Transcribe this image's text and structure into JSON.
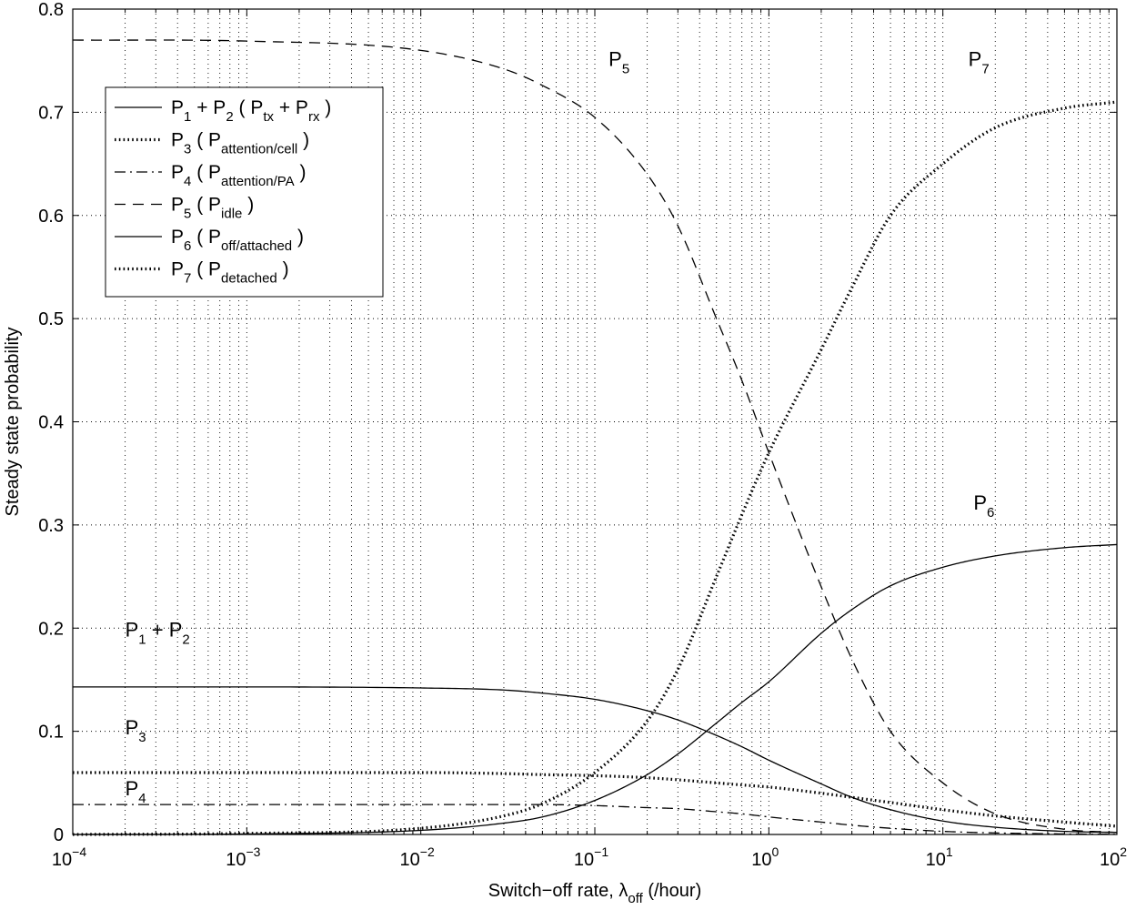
{
  "chart_data": {
    "type": "line",
    "xscale": "log",
    "xlim": [
      0.0001,
      100
    ],
    "ylim": [
      0,
      0.8
    ],
    "grid": true,
    "legend_position": "top-left",
    "xlabel": "Switch−off rate, λ",
    "xlabel_sub": "off",
    "xlabel_suffix": " (/hour)",
    "ylabel": "Steady state probability",
    "xticks": [
      {
        "value": 0.0001,
        "base": "10",
        "exp": "−4"
      },
      {
        "value": 0.001,
        "base": "10",
        "exp": "−3"
      },
      {
        "value": 0.01,
        "base": "10",
        "exp": "−2"
      },
      {
        "value": 0.1,
        "base": "10",
        "exp": "−1"
      },
      {
        "value": 1,
        "base": "10",
        "exp": "0"
      },
      {
        "value": 10,
        "base": "10",
        "exp": "1"
      },
      {
        "value": 100,
        "base": "10",
        "exp": "2"
      }
    ],
    "yticks": [
      {
        "value": 0,
        "label": "0"
      },
      {
        "value": 0.1,
        "label": "0.1"
      },
      {
        "value": 0.2,
        "label": "0.2"
      },
      {
        "value": 0.3,
        "label": "0.3"
      },
      {
        "value": 0.4,
        "label": "0.4"
      },
      {
        "value": 0.5,
        "label": "0.5"
      },
      {
        "value": 0.6,
        "label": "0.6"
      },
      {
        "value": 0.7,
        "label": "0.7"
      },
      {
        "value": 0.8,
        "label": "0.8"
      }
    ],
    "series": [
      {
        "key": "p12",
        "name": "P1 + P2 ( Ptx + Prx )",
        "style": "solid",
        "x": [
          0.0001,
          0.001,
          0.01,
          0.03,
          0.05,
          0.1,
          0.2,
          0.3,
          0.5,
          0.7,
          1,
          2,
          3,
          5,
          10,
          20,
          50,
          100
        ],
        "y": [
          0.143,
          0.143,
          0.142,
          0.14,
          0.137,
          0.131,
          0.12,
          0.111,
          0.096,
          0.085,
          0.072,
          0.049,
          0.036,
          0.024,
          0.013,
          0.007,
          0.003,
          0.002
        ]
      },
      {
        "key": "p3",
        "name": "P3 ( Pattention/cell )",
        "style": "dotted",
        "x": [
          0.0001,
          0.001,
          0.01,
          0.03,
          0.05,
          0.1,
          0.2,
          0.3,
          0.5,
          0.7,
          1,
          2,
          3,
          5,
          10,
          20,
          50,
          100
        ],
        "y": [
          0.06,
          0.06,
          0.06,
          0.059,
          0.058,
          0.057,
          0.055,
          0.053,
          0.05,
          0.048,
          0.046,
          0.04,
          0.036,
          0.031,
          0.024,
          0.018,
          0.012,
          0.008
        ]
      },
      {
        "key": "p4",
        "name": "P4 ( Pattention/PA )",
        "style": "dashdot",
        "x": [
          0.0001,
          0.001,
          0.01,
          0.03,
          0.05,
          0.1,
          0.2,
          0.3,
          0.5,
          0.7,
          1,
          2,
          3,
          5,
          10,
          20,
          50,
          100
        ],
        "y": [
          0.029,
          0.029,
          0.029,
          0.029,
          0.029,
          0.028,
          0.026,
          0.025,
          0.022,
          0.02,
          0.017,
          0.012,
          0.009,
          0.006,
          0.003,
          0.0015,
          0.0005,
          0.0002
        ]
      },
      {
        "key": "p5",
        "name": "P5 ( Pidle )",
        "style": "dashed",
        "x": [
          0.0001,
          0.001,
          0.01,
          0.03,
          0.05,
          0.1,
          0.2,
          0.3,
          0.5,
          0.7,
          1,
          2,
          3,
          5,
          10,
          20,
          50,
          100
        ],
        "y": [
          0.77,
          0.769,
          0.76,
          0.742,
          0.726,
          0.695,
          0.64,
          0.59,
          0.5,
          0.44,
          0.37,
          0.24,
          0.17,
          0.1,
          0.05,
          0.02,
          0.005,
          0.002
        ]
      },
      {
        "key": "p6",
        "name": "P6 ( Poff/attached )",
        "style": "solid",
        "x": [
          0.0001,
          0.001,
          0.01,
          0.03,
          0.05,
          0.1,
          0.2,
          0.3,
          0.5,
          0.7,
          1,
          2,
          3,
          5,
          10,
          20,
          50,
          100
        ],
        "y": [
          0.0,
          0.0005,
          0.004,
          0.011,
          0.017,
          0.033,
          0.058,
          0.078,
          0.108,
          0.128,
          0.148,
          0.195,
          0.218,
          0.241,
          0.259,
          0.27,
          0.278,
          0.281
        ]
      },
      {
        "key": "p7",
        "name": "P7 ( Pdetached )",
        "style": "dotted",
        "x": [
          0.0001,
          0.001,
          0.01,
          0.03,
          0.05,
          0.1,
          0.2,
          0.3,
          0.5,
          0.7,
          1,
          2,
          3,
          5,
          10,
          20,
          50,
          100
        ],
        "y": [
          0.0,
          0.001,
          0.006,
          0.018,
          0.03,
          0.06,
          0.11,
          0.16,
          0.25,
          0.31,
          0.37,
          0.47,
          0.53,
          0.6,
          0.65,
          0.685,
          0.704,
          0.71
        ]
      }
    ],
    "legend": [
      {
        "style": "solid",
        "prefix": "P",
        "sub1": "1",
        "mid": " + P",
        "sub2": "2",
        "open": " ( P",
        "sub3": "tx",
        "mid2": " + P",
        "sub4": "rx",
        "close": " )"
      },
      {
        "style": "dotted",
        "prefix": "P",
        "sub1": "3",
        "open": " ( P",
        "sub3": "attention/cell",
        "close": " )"
      },
      {
        "style": "dashdot",
        "prefix": "P",
        "sub1": "4",
        "open": " ( P",
        "sub3": "attention/PA",
        "close": " )"
      },
      {
        "style": "dashed",
        "prefix": "P",
        "sub1": "5",
        "open": " ( P",
        "sub3": "idle",
        "close": " )"
      },
      {
        "style": "solid",
        "prefix": "P",
        "sub1": "6",
        "open": " ( P",
        "sub3": "off/attached",
        "close": " )"
      },
      {
        "style": "dotted",
        "prefix": "P",
        "sub1": "7",
        "open": " ( P",
        "sub3": "detached",
        "close": " )"
      }
    ],
    "annotations": [
      {
        "key": "p5",
        "main": "P",
        "sub": "5",
        "at_x": 0.12,
        "at_y": 0.745
      },
      {
        "key": "p7",
        "main": "P",
        "sub": "7",
        "at_x": 14,
        "at_y": 0.745
      },
      {
        "key": "p6",
        "main": "P",
        "sub": "6",
        "at_x": 15,
        "at_y": 0.315
      },
      {
        "key": "p12",
        "main": "P",
        "sub": "1",
        "mid": " + P",
        "sub2": "2",
        "at_x": 0.0002,
        "at_y": 0.192
      },
      {
        "key": "p3",
        "main": "P",
        "sub": "3",
        "at_x": 0.0002,
        "at_y": 0.097
      },
      {
        "key": "p4",
        "main": "P",
        "sub": "4",
        "at_x": 0.0002,
        "at_y": 0.038
      }
    ]
  }
}
